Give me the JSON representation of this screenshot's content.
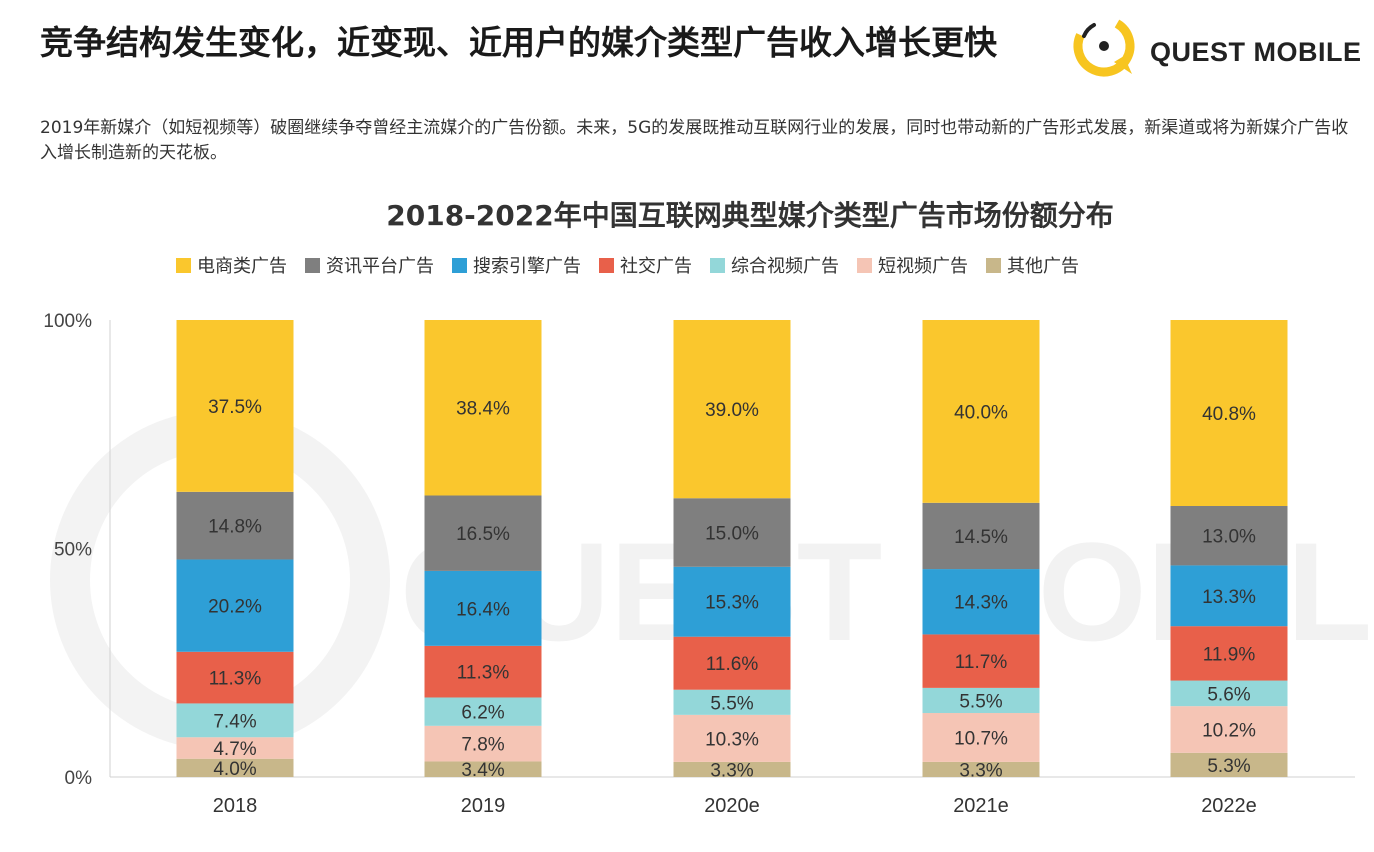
{
  "header": {
    "title": "竞争结构发生变化，近变现、近用户的媒介类型广告收入增长更快",
    "subtitle": "2019年新媒介（如短视频等）破圈继续争夺曾经主流媒介的广告份额。未来，5G的发展既推动互联网行业的发展，同时也带动新的广告形式发展，新渠道或将为新媒介广告收入增长制造新的天花板。"
  },
  "logo": {
    "text": "QUEST MOBILE",
    "accent_color": "#f7c520",
    "watermark": "QUEST MOBILE"
  },
  "chart_data": {
    "type": "bar",
    "stacked": true,
    "title": "2018-2022年中国互联网典型媒介类型广告市场份额分布",
    "categories": [
      "2018",
      "2019",
      "2020e",
      "2021e",
      "2022e"
    ],
    "y_ticks": [
      "0%",
      "50%",
      "100%"
    ],
    "ylim": [
      0,
      100
    ],
    "legend_position": "top",
    "series": [
      {
        "name": "其他广告",
        "color": "#c8b78a",
        "values": [
          4.0,
          3.4,
          3.3,
          3.3,
          5.3
        ],
        "labels": [
          "4.0%",
          "3.4%",
          "3.3%",
          "3.3%",
          "5.3%"
        ]
      },
      {
        "name": "短视频广告",
        "color": "#f5c5b5",
        "values": [
          4.7,
          7.8,
          10.3,
          10.7,
          10.2
        ],
        "labels": [
          "4.7%",
          "7.8%",
          "10.3%",
          "10.7%",
          "10.2%"
        ]
      },
      {
        "name": "综合视频广告",
        "color": "#93d7d9",
        "values": [
          7.4,
          6.2,
          5.5,
          5.5,
          5.6
        ],
        "labels": [
          "7.4%",
          "6.2%",
          "5.5%",
          "5.5%",
          "5.6%"
        ]
      },
      {
        "name": "社交广告",
        "color": "#e8604a",
        "values": [
          11.3,
          11.3,
          11.6,
          11.7,
          11.9
        ],
        "labels": [
          "11.3%",
          "11.3%",
          "11.6%",
          "11.7%",
          "11.9%"
        ]
      },
      {
        "name": "搜索引擎广告",
        "color": "#2e9fd6",
        "values": [
          20.2,
          16.4,
          15.3,
          14.3,
          13.3
        ],
        "labels": [
          "20.2%",
          "16.4%",
          "15.3%",
          "14.3%",
          "13.3%"
        ]
      },
      {
        "name": "资讯平台广告",
        "color": "#7f7f7f",
        "values": [
          14.8,
          16.5,
          15.0,
          14.5,
          13.0
        ],
        "labels": [
          "14.8%",
          "16.5%",
          "15.0%",
          "14.5%",
          "13.0%"
        ]
      },
      {
        "name": "电商类广告",
        "color": "#fac72d",
        "values": [
          37.5,
          38.4,
          39.0,
          40.0,
          40.8
        ],
        "labels": [
          "37.5%",
          "38.4%",
          "39.0%",
          "40.0%",
          "40.8%"
        ]
      }
    ],
    "legend_order": [
      "电商类广告",
      "资讯平台广告",
      "搜索引擎广告",
      "社交广告",
      "综合视频广告",
      "短视频广告",
      "其他广告"
    ]
  }
}
